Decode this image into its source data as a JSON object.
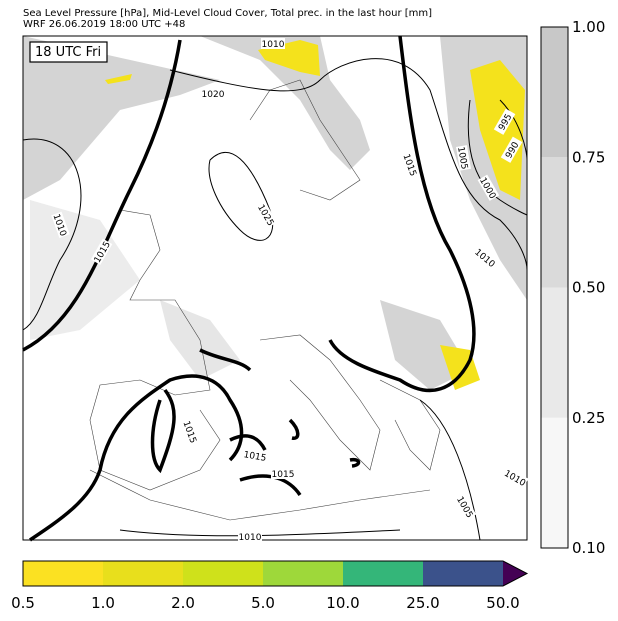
{
  "header": {
    "line1": "Sea Level Pressure [hPa], Mid-Level Cloud Cover, Total prec. in the last hour [mm]",
    "line2": "WRF 26.06.2019 18:00 UTC +48"
  },
  "map": {
    "time_label": "18 UTC Fri",
    "isobar_labels": [
      "1010",
      "1020",
      "1010",
      "1015",
      "1025",
      "1015",
      "1005",
      "1000",
      "995",
      "990",
      "1010",
      "1015",
      "1015",
      "1015",
      "1010",
      "1010",
      "1005"
    ]
  },
  "cloud_legend": {
    "ticks": [
      "0.10",
      "0.25",
      "0.50",
      "0.75",
      "1.00"
    ],
    "colors": [
      "#f7f7f7",
      "#e9e9e9",
      "#dadada",
      "#c8c8c8"
    ]
  },
  "precip_legend": {
    "ticks": [
      "0.5",
      "1.0",
      "2.0",
      "5.0",
      "10.0",
      "25.0",
      "50.0"
    ],
    "colors": [
      "#fbe122",
      "#e8df1c",
      "#cfe11b",
      "#9ed83a",
      "#34b679",
      "#3b528b",
      "#440154"
    ]
  }
}
